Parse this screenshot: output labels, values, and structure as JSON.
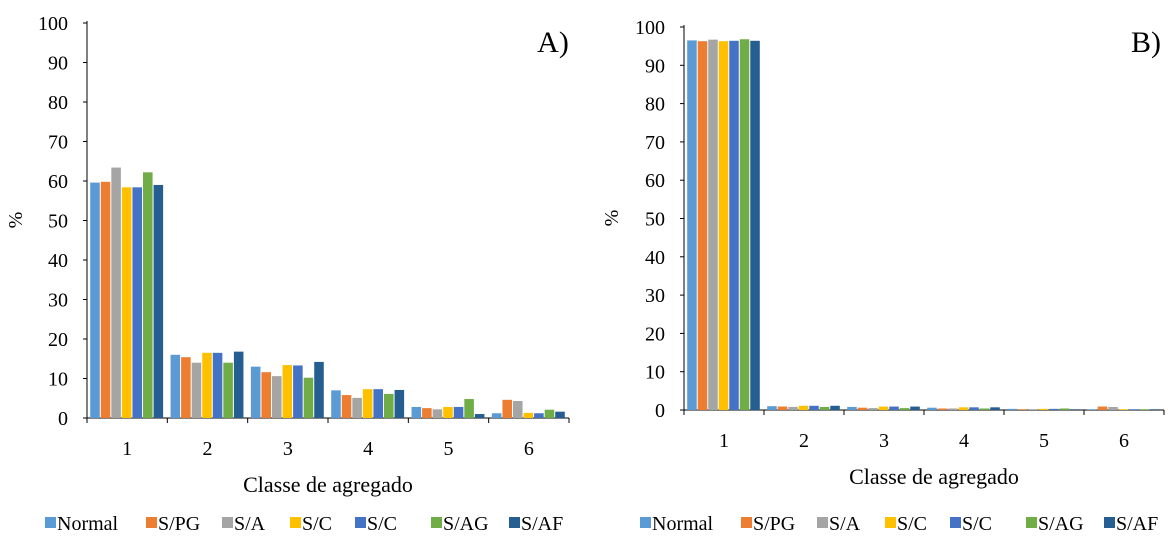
{
  "chart_data": [
    {
      "type": "bar",
      "panel_label": "A)",
      "xlabel": "Classe de agregado",
      "ylabel": "%",
      "ylim": [
        0,
        100
      ],
      "yticks": [
        0,
        10,
        20,
        30,
        40,
        50,
        60,
        70,
        80,
        90,
        100
      ],
      "categories": [
        "1",
        "2",
        "3",
        "4",
        "5",
        "6"
      ],
      "grid": false,
      "legend_position": "bottom",
      "series": [
        {
          "name": "Normal",
          "color": "#5B9BD5",
          "values": [
            59.6,
            16.0,
            13.0,
            7.0,
            2.8,
            1.2
          ]
        },
        {
          "name": "S/PG",
          "color": "#ED7D31",
          "values": [
            59.8,
            15.4,
            11.6,
            5.8,
            2.5,
            4.6
          ]
        },
        {
          "name": "S/A",
          "color": "#A5A5A5",
          "values": [
            63.4,
            14.0,
            10.6,
            5.1,
            2.2,
            4.3
          ]
        },
        {
          "name": "S/C",
          "color": "#FFC000",
          "values": [
            58.4,
            16.5,
            13.4,
            7.3,
            2.8,
            1.3
          ]
        },
        {
          "name": "S/C",
          "color": "#4472C4",
          "values": [
            58.4,
            16.5,
            13.3,
            7.3,
            2.8,
            1.2
          ]
        },
        {
          "name": "S/AG",
          "color": "#70AD47",
          "values": [
            62.2,
            14.0,
            10.2,
            6.1,
            4.8,
            2.1
          ]
        },
        {
          "name": "S/AF",
          "color": "#255E91",
          "values": [
            59.0,
            16.8,
            14.2,
            7.1,
            1.0,
            1.6
          ]
        }
      ]
    },
    {
      "type": "bar",
      "panel_label": "B)",
      "xlabel": "Classe de agregado",
      "ylabel": "%",
      "ylim": [
        0,
        100
      ],
      "yticks": [
        0,
        10,
        20,
        30,
        40,
        50,
        60,
        70,
        80,
        90,
        100
      ],
      "categories": [
        "1",
        "2",
        "3",
        "4",
        "5",
        "6"
      ],
      "grid": false,
      "legend_position": "bottom",
      "series": [
        {
          "name": "Normal",
          "color": "#5B9BD5",
          "values": [
            96.5,
            1.0,
            0.8,
            0.6,
            0.3,
            0.2
          ]
        },
        {
          "name": "S/PG",
          "color": "#ED7D31",
          "values": [
            96.3,
            0.9,
            0.6,
            0.4,
            0.2,
            0.9
          ]
        },
        {
          "name": "S/A",
          "color": "#A5A5A5",
          "values": [
            96.7,
            0.8,
            0.5,
            0.4,
            0.2,
            0.8
          ]
        },
        {
          "name": "S/C",
          "color": "#FFC000",
          "values": [
            96.3,
            1.1,
            0.9,
            0.7,
            0.3,
            0.2
          ]
        },
        {
          "name": "S/C",
          "color": "#4472C4",
          "values": [
            96.4,
            1.1,
            0.9,
            0.7,
            0.3,
            0.2
          ]
        },
        {
          "name": "S/AG",
          "color": "#70AD47",
          "values": [
            96.8,
            0.8,
            0.5,
            0.4,
            0.4,
            0.2
          ]
        },
        {
          "name": "S/AF",
          "color": "#255E91",
          "values": [
            96.4,
            1.1,
            0.9,
            0.7,
            0.2,
            0.2
          ]
        }
      ]
    }
  ]
}
